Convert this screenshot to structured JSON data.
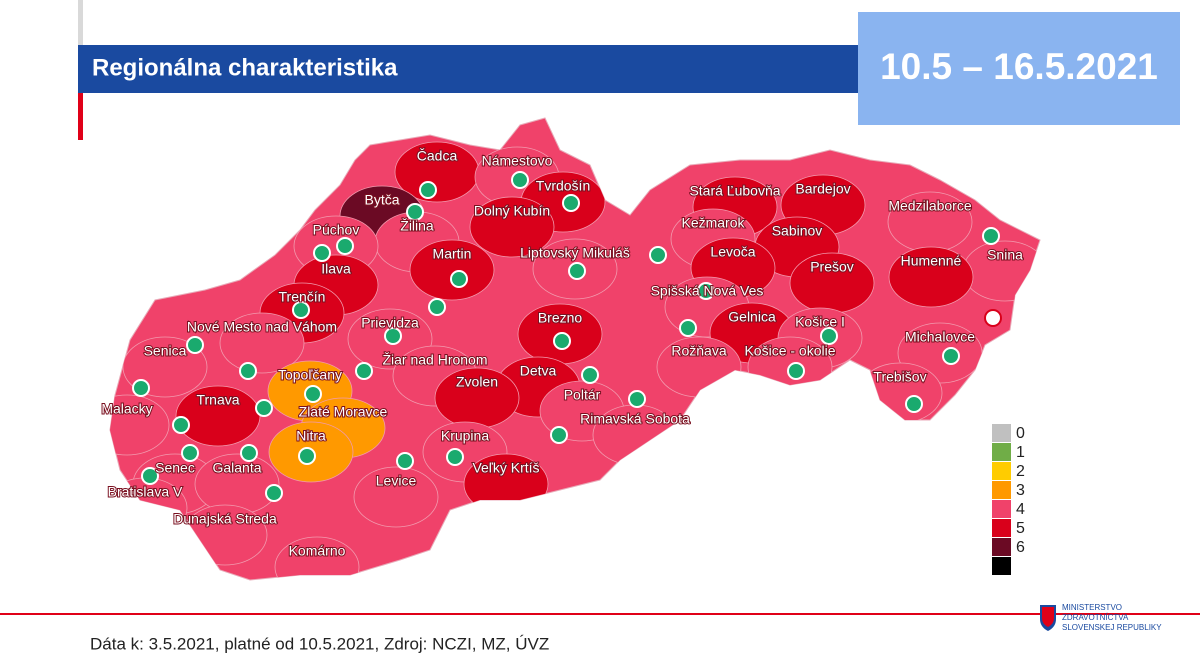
{
  "header": {
    "title": "Regionálna charakteristika",
    "date_range": "10.5 – 16.5.2021"
  },
  "map": {
    "districts": [
      {
        "name": "Čadca",
        "level": 5
      },
      {
        "name": "Námestovo",
        "level": 4
      },
      {
        "name": "Tvrdošín",
        "level": 5
      },
      {
        "name": "Bytča",
        "level": 6
      },
      {
        "name": "Žilina",
        "level": 4
      },
      {
        "name": "Dolný Kubín",
        "level": 5
      },
      {
        "name": "Púchov",
        "level": 4
      },
      {
        "name": "Ilava",
        "level": 5
      },
      {
        "name": "Martin",
        "level": 5
      },
      {
        "name": "Liptovský Mikuláš",
        "level": 4
      },
      {
        "name": "Stará Ľubovňa",
        "level": 5
      },
      {
        "name": "Bardejov",
        "level": 5
      },
      {
        "name": "Kežmarok",
        "level": 4
      },
      {
        "name": "Sabinov",
        "level": 5
      },
      {
        "name": "Medzilaborce",
        "level": 4
      },
      {
        "name": "Snina",
        "level": 4
      },
      {
        "name": "Levoča",
        "level": 5
      },
      {
        "name": "Prešov",
        "level": 5
      },
      {
        "name": "Humenné",
        "level": 5
      },
      {
        "name": "Spišská Nová Ves",
        "level": 4
      },
      {
        "name": "Trenčín",
        "level": 5
      },
      {
        "name": "Nové Mesto nad Váhom",
        "level": 4
      },
      {
        "name": "Prievidza",
        "level": 4
      },
      {
        "name": "Brezno",
        "level": 5
      },
      {
        "name": "Gelnica",
        "level": 5
      },
      {
        "name": "Košice I",
        "level": 4
      },
      {
        "name": "Senica",
        "level": 4
      },
      {
        "name": "Žiar nad Hronom",
        "level": 4
      },
      {
        "name": "Rožňava",
        "level": 4
      },
      {
        "name": "Košice - okolie",
        "level": 4
      },
      {
        "name": "Michalovce",
        "level": 4
      },
      {
        "name": "Topoľčany",
        "level": 3
      },
      {
        "name": "Detva",
        "level": 5
      },
      {
        "name": "Zvolen",
        "level": 5
      },
      {
        "name": "Poltár",
        "level": 4
      },
      {
        "name": "Trebišov",
        "level": 4
      },
      {
        "name": "Malacky",
        "level": 4
      },
      {
        "name": "Trnava",
        "level": 5
      },
      {
        "name": "Zlaté Moravce",
        "level": 3
      },
      {
        "name": "Rimavská Sobota",
        "level": 4
      },
      {
        "name": "Krupina",
        "level": 4
      },
      {
        "name": "Nitra",
        "level": 3
      },
      {
        "name": "Senec",
        "level": 4
      },
      {
        "name": "Galanta",
        "level": 4
      },
      {
        "name": "Veľký Krtíš",
        "level": 5
      },
      {
        "name": "Levice",
        "level": 4
      },
      {
        "name": "Bratislava V",
        "level": 4
      },
      {
        "name": "Dunajská Streda",
        "level": 4
      },
      {
        "name": "Komárno",
        "level": 4
      }
    ],
    "legend": [
      {
        "label": 0,
        "color": "#c0c0c0"
      },
      {
        "label": 1,
        "color": "#70ad47"
      },
      {
        "label": 2,
        "color": "#ffcc00"
      },
      {
        "label": 3,
        "color": "#ff9900"
      },
      {
        "label": 4,
        "color": "#f0426a"
      },
      {
        "label": 5,
        "color": "#d9001b"
      },
      {
        "label": 6,
        "color": "#6b0a24"
      }
    ]
  },
  "footer": {
    "source": "Dáta k: 3.5.2021, platné od 10.5.2021, Zdroj: NCZI, MZ, ÚVZ",
    "logo": [
      "MINISTERSTVO",
      "ZDRAVOTNÍCTVA",
      "SLOVENSKEJ REPUBLIKY"
    ]
  }
}
